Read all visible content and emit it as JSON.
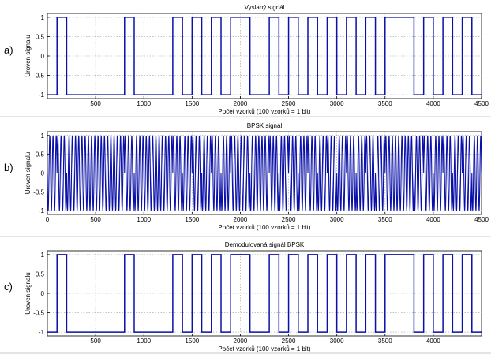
{
  "chart_data": [
    {
      "type": "line",
      "panel_label": "a)",
      "title": "Vyslaný signál",
      "xlabel": "Počet vzorků (100 vzorků = 1 bit)",
      "ylabel": "Uroven signalu",
      "xlim": [
        0,
        4500
      ],
      "ylim": [
        -1.1,
        1.1
      ],
      "xticks": [
        500,
        1000,
        1500,
        2000,
        2500,
        3000,
        3500,
        4000,
        4500
      ],
      "yticks": [
        -1,
        -0.5,
        0,
        0.5,
        1
      ],
      "grid": true,
      "step": true,
      "series": [
        {
          "color": "#0a10a8",
          "bits": [
            -1,
            1,
            -1,
            -1,
            -1,
            -1,
            -1,
            -1,
            1,
            -1,
            -1,
            -1,
            -1,
            1,
            -1,
            1,
            -1,
            1,
            -1,
            1,
            1,
            -1,
            -1,
            1,
            -1,
            1,
            -1,
            1,
            -1,
            1,
            -1,
            1,
            -1,
            1,
            -1,
            1,
            1,
            1,
            -1,
            1,
            -1,
            1,
            -1,
            1,
            -1
          ]
        }
      ]
    },
    {
      "type": "line",
      "panel_label": "b)",
      "title": "BPSK signál",
      "xlabel": "Počet vzorků (100 vzorků = 1 bit)",
      "ylabel": "Uroven signalu",
      "xlim": [
        0,
        4500
      ],
      "ylim": [
        -1.1,
        1.1
      ],
      "xticks": [
        0,
        500,
        1000,
        1500,
        2000,
        2500,
        3000,
        3500,
        4000,
        4500
      ],
      "yticks": [
        -1,
        -0.5,
        0,
        0.5,
        1
      ],
      "grid": true,
      "carrier_period": 100,
      "series": [
        {
          "color": "#0a10a8",
          "bits": [
            -1,
            1,
            -1,
            -1,
            -1,
            -1,
            -1,
            -1,
            1,
            -1,
            -1,
            -1,
            -1,
            1,
            -1,
            1,
            -1,
            1,
            -1,
            1,
            1,
            -1,
            -1,
            1,
            -1,
            1,
            -1,
            1,
            -1,
            1,
            -1,
            1,
            -1,
            1,
            -1,
            1,
            1,
            1,
            -1,
            1,
            -1,
            1,
            -1,
            1,
            -1
          ]
        }
      ]
    },
    {
      "type": "line",
      "panel_label": "c)",
      "title": "Demodulovaná signál BPSK",
      "xlabel": "Počet vzorků (100 vzorků = 1 bit)",
      "ylabel": "Uroven signalu",
      "xlim": [
        0,
        4500
      ],
      "ylim": [
        -1.1,
        1.1
      ],
      "xticks": [
        500,
        1000,
        1500,
        2000,
        2500,
        3000,
        3500,
        4000
      ],
      "yticks": [
        -1,
        -0.5,
        0,
        0.5,
        1
      ],
      "grid": true,
      "step": true,
      "series": [
        {
          "color": "#0a10a8",
          "bits": [
            -1,
            1,
            -1,
            -1,
            -1,
            -1,
            -1,
            -1,
            1,
            -1,
            -1,
            -1,
            -1,
            1,
            -1,
            1,
            -1,
            1,
            -1,
            1,
            1,
            -1,
            -1,
            1,
            -1,
            1,
            -1,
            1,
            -1,
            1,
            -1,
            1,
            -1,
            1,
            -1,
            1,
            1,
            1,
            -1,
            1,
            -1,
            1,
            -1,
            1,
            -1
          ]
        }
      ]
    }
  ]
}
